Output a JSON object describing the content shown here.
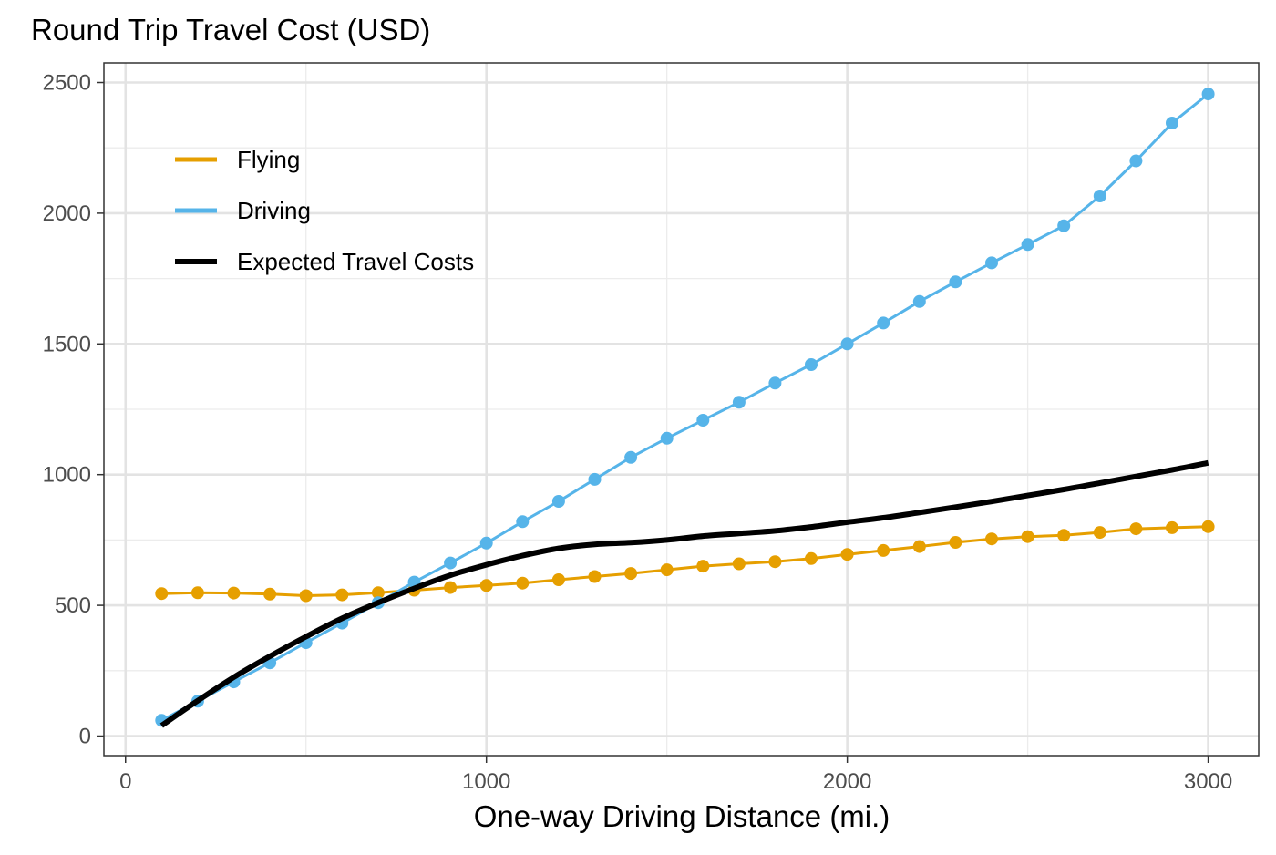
{
  "chart_data": {
    "type": "line",
    "title": "Round Trip Travel Cost (USD)",
    "xlabel": "One-way Driving Distance (mi.)",
    "ylabel": "",
    "xlim": [
      -60,
      3140
    ],
    "ylim": [
      -75,
      2575
    ],
    "x_ticks": [
      0,
      1000,
      2000,
      3000
    ],
    "y_ticks": [
      0,
      500,
      1000,
      1500,
      2000,
      2500
    ],
    "x_minor_ticks": [
      500,
      1500,
      2500
    ],
    "y_minor_ticks": [
      250,
      750,
      1250,
      1750,
      2250
    ],
    "grid": true,
    "legend_position": "top-left",
    "series": [
      {
        "name": "Flying",
        "color": "#E69F00",
        "markers": true,
        "x": [
          100,
          200,
          300,
          400,
          500,
          600,
          700,
          800,
          900,
          1000,
          1100,
          1200,
          1300,
          1400,
          1500,
          1600,
          1700,
          1800,
          1900,
          2000,
          2100,
          2200,
          2300,
          2400,
          2500,
          2600,
          2700,
          2800,
          2900,
          3000
        ],
        "values": [
          545,
          548,
          547,
          543,
          537,
          540,
          548,
          558,
          568,
          576,
          585,
          598,
          610,
          622,
          636,
          650,
          659,
          667,
          679,
          695,
          710,
          725,
          741,
          754,
          763,
          768,
          779,
          793,
          797,
          801
        ]
      },
      {
        "name": "Driving",
        "color": "#56B4E9",
        "markers": true,
        "x": [
          100,
          200,
          300,
          400,
          500,
          600,
          700,
          800,
          900,
          1000,
          1100,
          1200,
          1300,
          1400,
          1500,
          1600,
          1700,
          1800,
          1900,
          2000,
          2100,
          2200,
          2300,
          2400,
          2500,
          2600,
          2700,
          2800,
          2900,
          3000
        ],
        "values": [
          60,
          133,
          207,
          280,
          357,
          432,
          510,
          589,
          662,
          738,
          820,
          898,
          982,
          1066,
          1139,
          1208,
          1277,
          1350,
          1421,
          1500,
          1580,
          1662,
          1737,
          1810,
          1880,
          1952,
          2066,
          2200,
          2345,
          2456
        ]
      },
      {
        "name": "Expected Travel Costs",
        "color": "#000000",
        "markers": false,
        "x": [
          100,
          200,
          300,
          400,
          500,
          600,
          700,
          800,
          900,
          1000,
          1100,
          1200,
          1300,
          1400,
          1500,
          1600,
          1700,
          1800,
          1900,
          2000,
          2100,
          2200,
          2300,
          2400,
          2500,
          2600,
          2700,
          2800,
          2900,
          3000
        ],
        "values": [
          40,
          135,
          225,
          305,
          380,
          450,
          510,
          565,
          615,
          655,
          690,
          718,
          733,
          740,
          750,
          765,
          775,
          785,
          800,
          818,
          835,
          855,
          876,
          897,
          920,
          943,
          968,
          993,
          1018,
          1045
        ]
      }
    ]
  }
}
